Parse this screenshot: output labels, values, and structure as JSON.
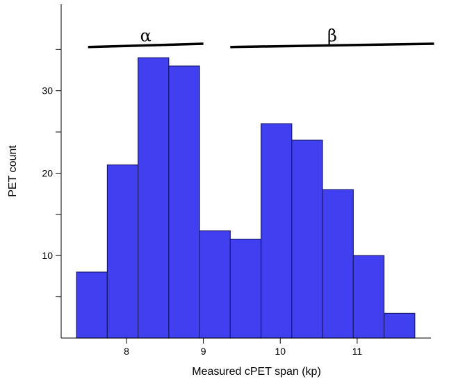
{
  "chart_data": {
    "type": "bar",
    "histogram": true,
    "bin_edges": [
      7.35,
      7.75,
      8.15,
      8.55,
      8.95,
      9.35,
      9.75,
      10.15,
      10.55,
      10.95,
      11.35,
      11.75
    ],
    "values": [
      8,
      21,
      34,
      33,
      13,
      12,
      26,
      24,
      18,
      10,
      3
    ],
    "xlabel": "Measured cPET span (kp)",
    "ylabel": "PET count",
    "xlim": [
      7.15,
      12.05
    ],
    "ylim": [
      0,
      40.5
    ],
    "x_ticks": [
      8,
      9,
      10,
      11
    ],
    "y_ticks_major": [
      10,
      20,
      30
    ],
    "y_ticks_minor": [
      5,
      15,
      25,
      35
    ],
    "grid": false,
    "annotations": [
      {
        "label": "α",
        "x_start": 7.5,
        "x_end": 9.0,
        "y_start": 35.3,
        "y_end": 35.7
      },
      {
        "label": "β",
        "x_start": 9.35,
        "x_end": 12.0,
        "y_start": 35.3,
        "y_end": 35.7
      }
    ],
    "colors": {
      "bar_fill": "#4040f0",
      "bar_stroke": "#1a1a6e",
      "line": "#000000"
    }
  }
}
